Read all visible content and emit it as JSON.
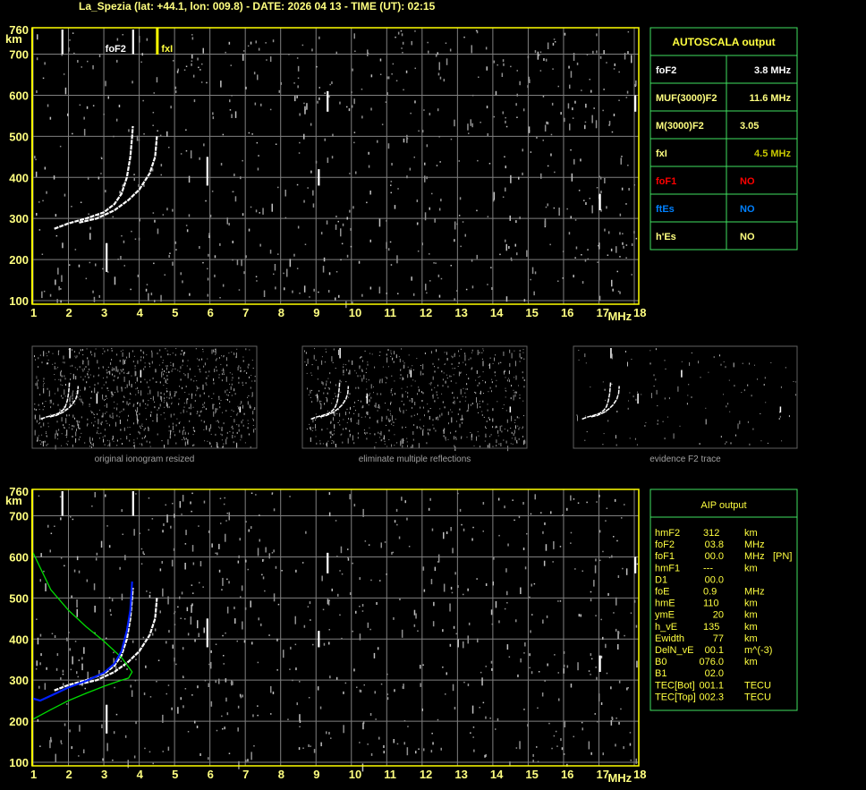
{
  "header": {
    "title": "La_Spezia (lat: +44.1, lon: 009.8) - DATE: 2026 04 13 - TIME (UT): 02:15"
  },
  "colors": {
    "axis": "#ffff00",
    "grid": "#808080",
    "table_border": "#40e060",
    "trace": "#ffffff",
    "noise": "#909090",
    "profile": "#00dd00",
    "aip_trace": "#0020ff",
    "red": "#ff0000",
    "blue": "#0080ff",
    "yellow_dim": "#c8c800"
  },
  "chart_data": [
    {
      "type": "scatter",
      "name_label": "top-ionogram",
      "xlabel": "MHz",
      "ylabel": "km",
      "xlim": [
        1,
        18
      ],
      "ylim": [
        100,
        760
      ],
      "x_ticks": [
        "1",
        "2",
        "3",
        "4",
        "5",
        "6",
        "7",
        "8",
        "9",
        "10",
        "11",
        "12",
        "13",
        "14",
        "15",
        "16",
        "17",
        "18"
      ],
      "y_ticks": [
        "760",
        "700",
        "600",
        "500",
        "400",
        "300",
        "200",
        "100"
      ],
      "grid": true,
      "annotations": [
        {
          "label": "foF2",
          "x": 3.8
        },
        {
          "label": "fxI",
          "x": 4.5
        }
      ],
      "o_trace": [
        [
          1.6,
          275
        ],
        [
          2,
          288
        ],
        [
          2.5,
          300
        ],
        [
          3,
          315
        ],
        [
          3.3,
          335
        ],
        [
          3.5,
          360
        ],
        [
          3.65,
          400
        ],
        [
          3.75,
          450
        ],
        [
          3.8,
          500
        ],
        [
          3.82,
          525
        ]
      ],
      "x_trace": [
        [
          2.3,
          290
        ],
        [
          2.8,
          300
        ],
        [
          3.3,
          320
        ],
        [
          3.7,
          345
        ],
        [
          4.0,
          370
        ],
        [
          4.3,
          410
        ],
        [
          4.45,
          450
        ],
        [
          4.5,
          500
        ]
      ]
    },
    {
      "type": "line",
      "name_label": "bottom-ionogram",
      "xlabel": "MHz",
      "ylabel": "km",
      "xlim": [
        1,
        18
      ],
      "ylim": [
        100,
        760
      ],
      "grid": true,
      "profile_curve": [
        [
          1,
          610
        ],
        [
          1.5,
          520
        ],
        [
          2,
          470
        ],
        [
          2.5,
          430
        ],
        [
          3,
          395
        ],
        [
          3.5,
          355
        ],
        [
          3.8,
          320
        ],
        [
          3.7,
          305
        ],
        [
          3.5,
          300
        ],
        [
          3,
          285
        ],
        [
          2.5,
          268
        ],
        [
          2,
          250
        ],
        [
          1.5,
          228
        ],
        [
          1,
          205
        ]
      ],
      "aip_trace": [
        [
          1,
          255
        ],
        [
          1.2,
          250
        ],
        [
          1.5,
          262
        ],
        [
          2,
          282
        ],
        [
          2.5,
          298
        ],
        [
          3,
          318
        ],
        [
          3.3,
          340
        ],
        [
          3.5,
          370
        ],
        [
          3.65,
          420
        ],
        [
          3.75,
          470
        ],
        [
          3.8,
          540
        ]
      ]
    }
  ],
  "thumbnails": [
    {
      "caption": "original ionogram resized"
    },
    {
      "caption": "eliminate multiple reflections"
    },
    {
      "caption": "evidence F2 trace"
    }
  ],
  "autoscala": {
    "title": "AUTOSCALA output",
    "rows": [
      {
        "label": "foF2",
        "value": "3.8 MHz",
        "color": "#ffffff"
      },
      {
        "label": "MUF(3000)F2",
        "value": "11.6 MHz",
        "color": "#ffff80"
      },
      {
        "label": "M(3000)F2",
        "value": "3.05",
        "color": "#ffff80"
      },
      {
        "label": "fxI",
        "value": "4.5 MHz",
        "color": "#ffff80",
        "value_color": "#c8c800"
      },
      {
        "label": "foF1",
        "value": "NO",
        "color": "#ff0000"
      },
      {
        "label": "ftEs",
        "value": "NO",
        "color": "#0080ff"
      },
      {
        "label": "h'Es",
        "value": "NO",
        "color": "#ffff80"
      }
    ]
  },
  "aip": {
    "title": "AIP output",
    "rows": [
      {
        "label": "hmF2",
        "value": "312",
        "unit": "km",
        "extra": ""
      },
      {
        "label": "foF2",
        "value": "03.8",
        "unit": "MHz",
        "extra": ""
      },
      {
        "label": "foF1",
        "value": "00.0",
        "unit": "MHz",
        "extra": "[PN]"
      },
      {
        "label": "hmF1",
        "value": "---",
        "unit": "km",
        "extra": ""
      },
      {
        "label": "D1",
        "value": "00.0",
        "unit": "",
        "extra": ""
      },
      {
        "label": "foE",
        "value": "0.9",
        "unit": "MHz",
        "extra": ""
      },
      {
        "label": "hmE",
        "value": "110",
        "unit": "km",
        "extra": ""
      },
      {
        "label": "ymE",
        "value": "20",
        "unit": "km",
        "extra": ""
      },
      {
        "label": "h_vE",
        "value": "135",
        "unit": "km",
        "extra": ""
      },
      {
        "label": "Ewidth",
        "value": "77",
        "unit": "km",
        "extra": ""
      },
      {
        "label": "DelN_vE",
        "value": "00.1",
        "unit": "m^(-3)",
        "extra": ""
      },
      {
        "label": "B0",
        "value": "076.0",
        "unit": "km",
        "extra": ""
      },
      {
        "label": "B1",
        "value": "02.0",
        "unit": "",
        "extra": ""
      },
      {
        "label": "TEC[Bot]",
        "value": "001.1",
        "unit": "TECU",
        "extra": ""
      },
      {
        "label": "TEC[Top]",
        "value": "002.3",
        "unit": "TECU",
        "extra": ""
      }
    ]
  }
}
